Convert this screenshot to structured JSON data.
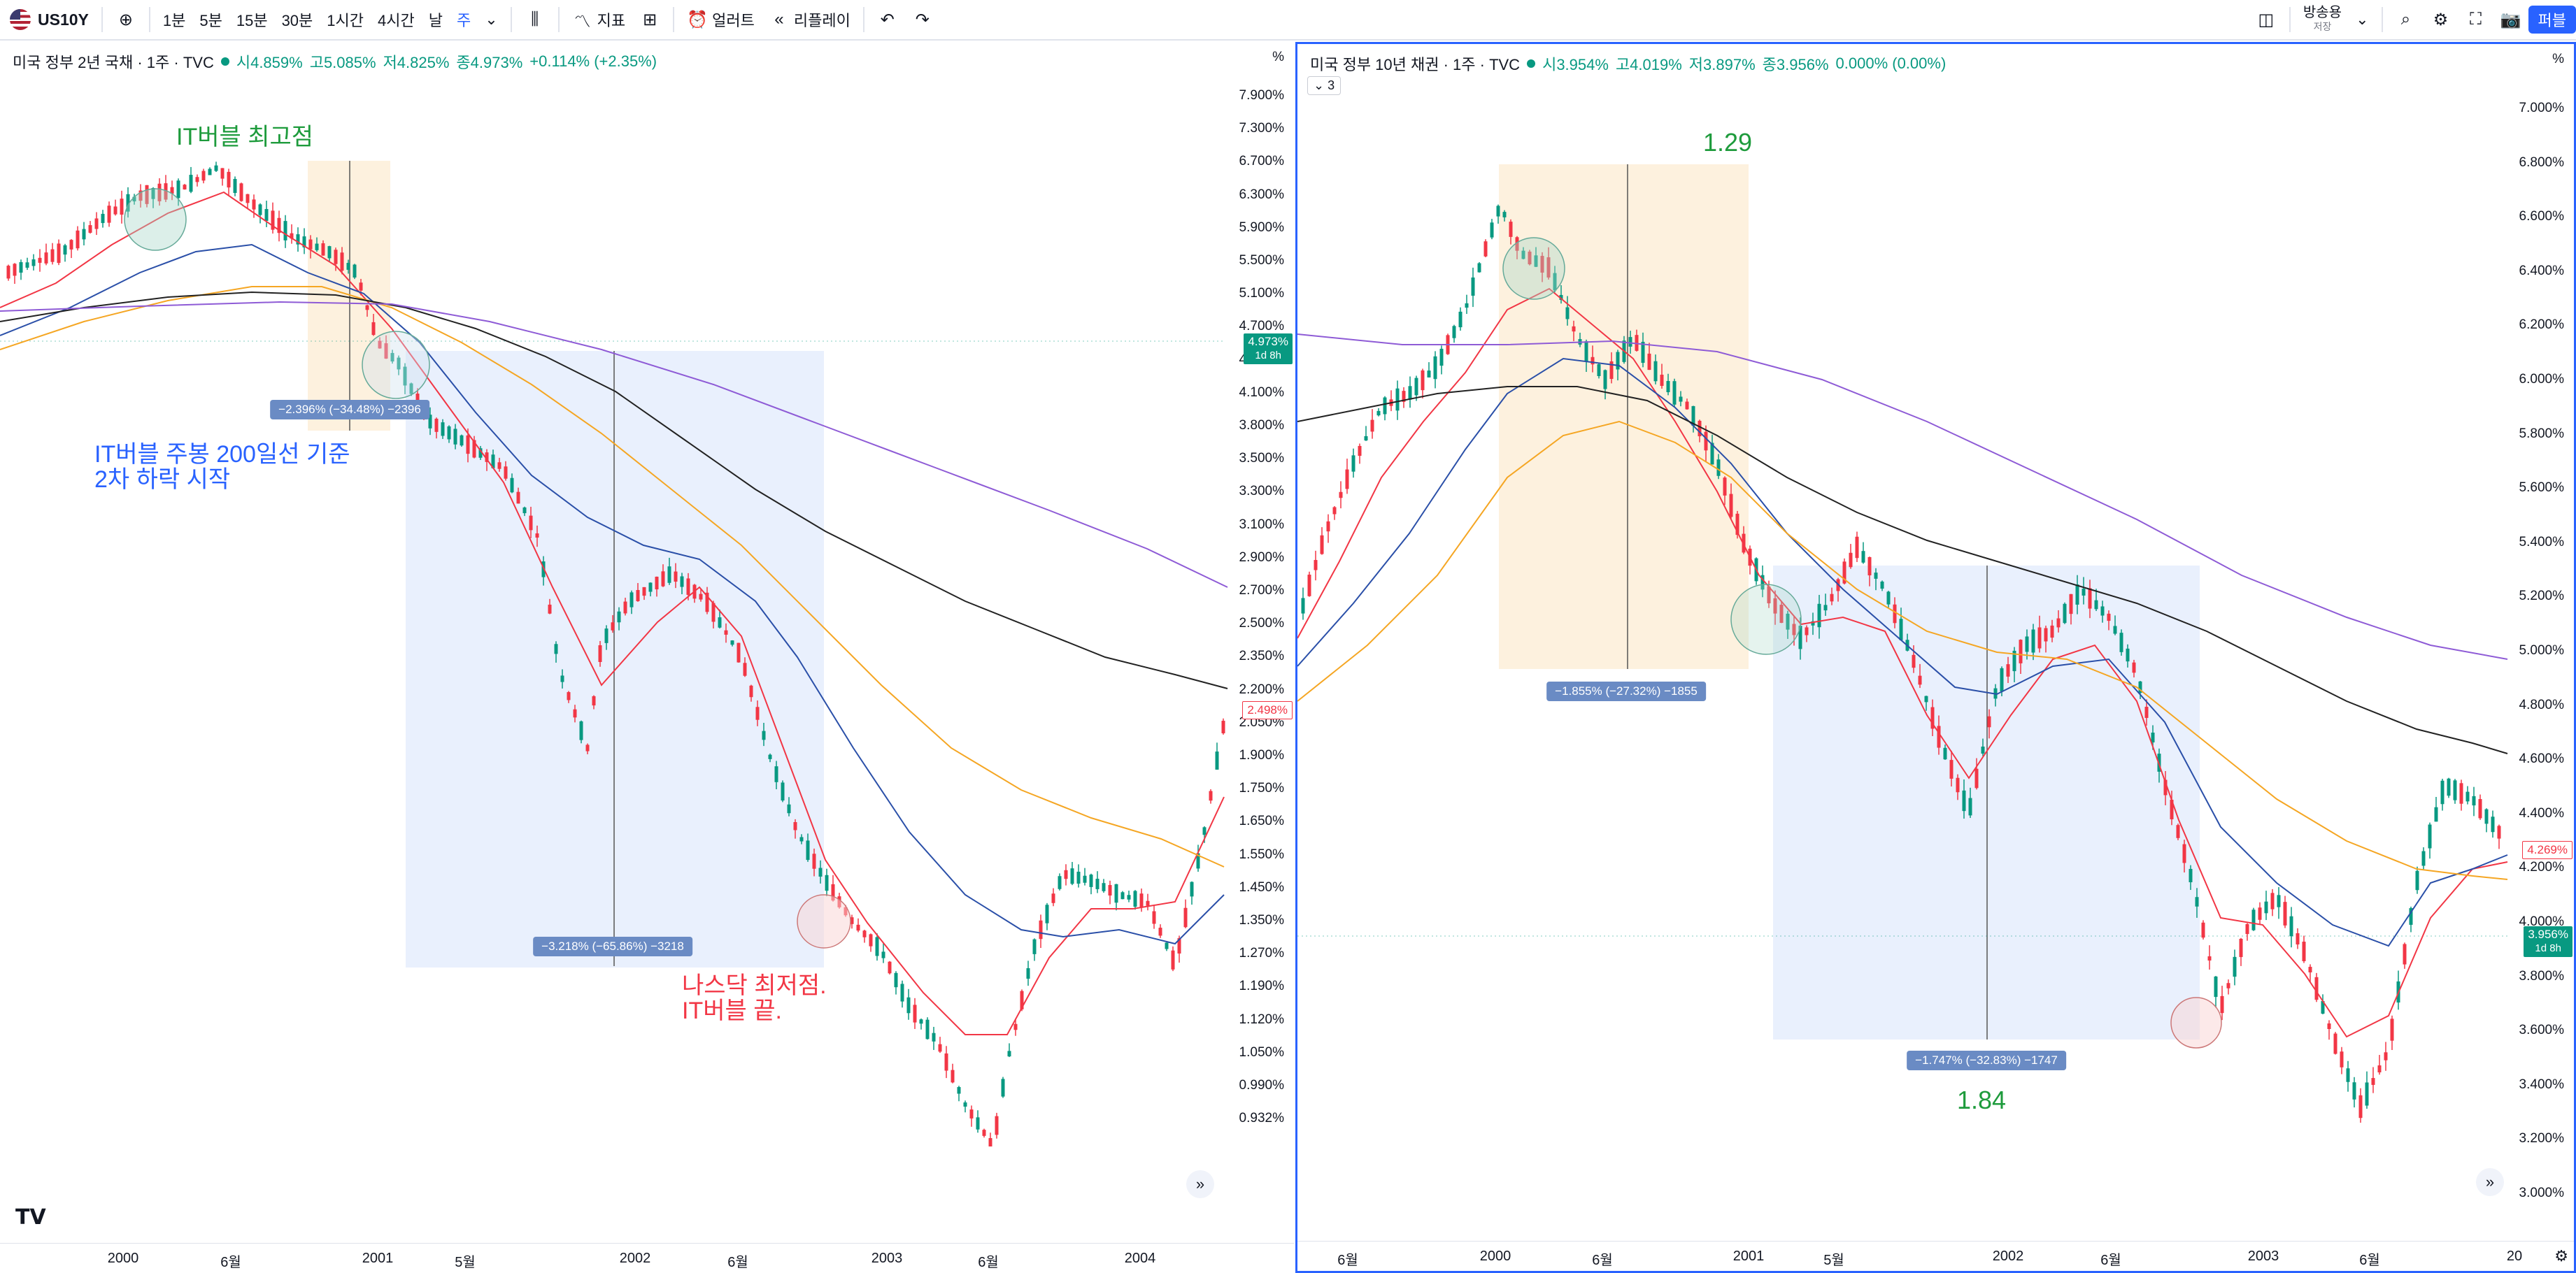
{
  "toolbar": {
    "symbol": "US10Y",
    "intervals": [
      "1분",
      "5분",
      "15분",
      "30분",
      "1시간",
      "4시간",
      "날",
      "주"
    ],
    "indicators": "지표",
    "alerts": "얼러트",
    "replay": "리플레이",
    "layout_name": "방송용",
    "layout_sub": "저장",
    "publish": "퍼블"
  },
  "left": {
    "title": "미국 정부 2년 국채 · 1주 · TVC",
    "ohlc": {
      "o": "시4.859%",
      "h": "고5.085%",
      "l": "저4.825%",
      "c": "종4.973%",
      "chg": "+0.114% (+2.35%)"
    },
    "unit": "%",
    "price_ticks": [
      "7.900%",
      "7.300%",
      "6.700%",
      "6.300%",
      "5.900%",
      "5.500%",
      "5.100%",
      "4.700%",
      "4.400%",
      "4.100%",
      "3.800%",
      "3.500%",
      "3.300%",
      "3.100%",
      "2.900%",
      "2.700%",
      "2.500%",
      "2.350%",
      "2.200%",
      "2.050%",
      "1.900%",
      "1.750%",
      "1.650%",
      "1.550%",
      "1.450%",
      "1.350%",
      "1.270%",
      "1.190%",
      "1.120%",
      "1.050%",
      "0.990%",
      "0.932%"
    ],
    "time_ticks": [
      "2000",
      "6월",
      "2001",
      "5월",
      "2002",
      "6월",
      "2003",
      "6월",
      "2004"
    ],
    "last_price": "4.973%",
    "countdown": "1d 8h",
    "second_price": "2.498%",
    "annotations": {
      "peak": "IT버블 최고점",
      "second_drop_1": "IT버블 주봉 200일선 기준",
      "second_drop_2": "2차 하락 시작",
      "nasdaq_low_1": "나스닥 최저점.",
      "nasdaq_low_2": "IT버블 끝."
    },
    "measure1": "−2.396% (−34.48%) −2396",
    "measure2": "−3.218% (−65.86%) −3218"
  },
  "right": {
    "title": "미국 정부 10년 채권 · 1주 · TVC",
    "ohlc": {
      "o": "시3.954%",
      "h": "고4.019%",
      "l": "저3.897%",
      "c": "종3.956%",
      "chg": "0.000% (0.00%)"
    },
    "collapse": "3",
    "unit": "%",
    "price_ticks": [
      "7.000%",
      "6.800%",
      "6.600%",
      "6.400%",
      "6.200%",
      "6.000%",
      "5.800%",
      "5.600%",
      "5.400%",
      "5.200%",
      "5.000%",
      "4.800%",
      "4.600%",
      "4.400%",
      "4.200%",
      "4.000%",
      "3.800%",
      "3.600%",
      "3.400%",
      "3.200%",
      "3.000%"
    ],
    "time_ticks": [
      "6월",
      "2000",
      "6월",
      "2001",
      "5월",
      "2002",
      "6월",
      "2003",
      "6월",
      "20"
    ],
    "last_price": "3.956%",
    "countdown": "1d 8h",
    "second_price": "4.269%",
    "annotations": {
      "ratio_top": "1.29",
      "ratio_bottom": "1.84"
    },
    "measure1": "−1.855% (−27.32%) −1855",
    "measure2": "−1.747% (−32.83%) −1747"
  },
  "colors": {
    "up": "#089981",
    "down": "#f23645",
    "accent": "#2962ff",
    "ma_fast": "#f23645",
    "ma_mid": "#2a4fa8",
    "ma_orange": "#f5a623",
    "ma_black": "#222222",
    "ma_purple": "#8e5bd6"
  },
  "icons": [
    "add-icon",
    "candles-icon",
    "indicators-icon",
    "layouts-icon",
    "alert-icon",
    "replay-icon",
    "undo-icon",
    "redo-icon",
    "panel-icon",
    "search-icon",
    "gear-icon",
    "fullscreen-icon",
    "camera-icon"
  ]
}
